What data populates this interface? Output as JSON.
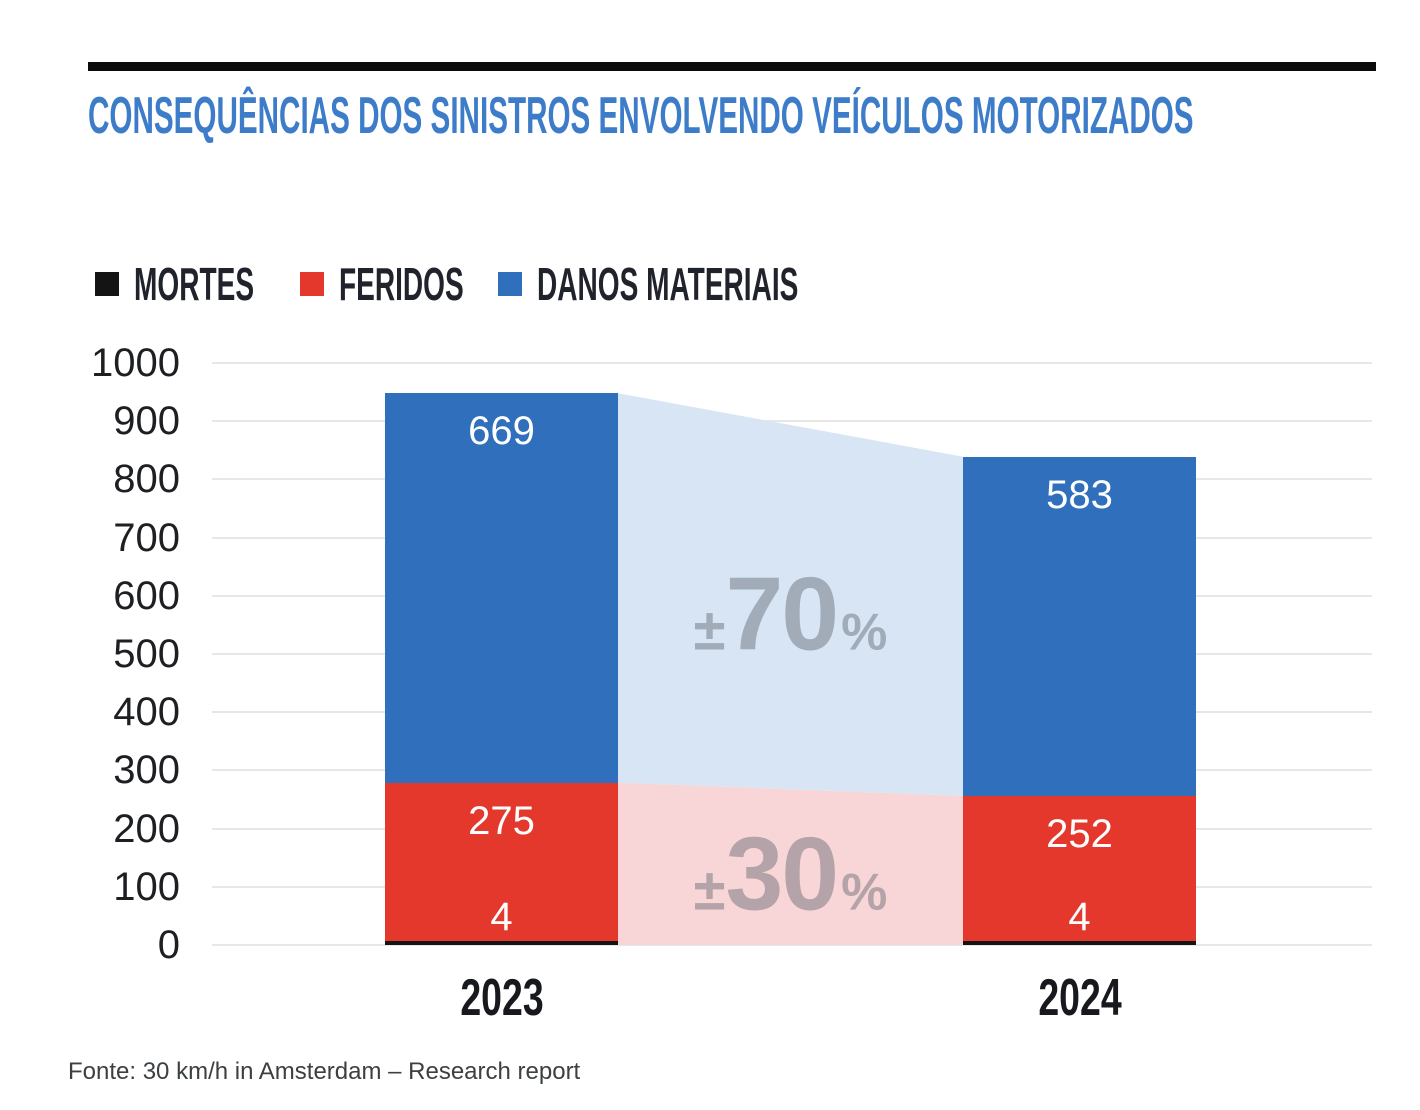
{
  "title": "CONSEQUÊNCIAS DOS SINISTROS ENVOLVENDO VEÍCULOS MOTORIZADOS",
  "legend": {
    "items": [
      {
        "label": "MORTES",
        "color": "#141414"
      },
      {
        "label": "FERIDOS",
        "color": "#E5382D"
      },
      {
        "label": "DANOS MATERIAIS",
        "color": "#2F6FBC"
      }
    ]
  },
  "chart_data": {
    "type": "bar",
    "stacked": true,
    "categories": [
      "2023",
      "2024"
    ],
    "series": [
      {
        "name": "MORTES",
        "color": "#141414",
        "values": [
          4,
          4
        ]
      },
      {
        "name": "FERIDOS",
        "color": "#E5382D",
        "values": [
          275,
          252
        ]
      },
      {
        "name": "DANOS MATERIAIS",
        "color": "#2F6FBC",
        "values": [
          669,
          583
        ]
      }
    ],
    "value_labels": {
      "MORTES": [
        "4",
        "4"
      ],
      "FERIDOS": [
        "275",
        "252"
      ],
      "DANOS MATERIAIS": [
        "669",
        "583"
      ]
    },
    "annotations": [
      {
        "pm": "±",
        "value": "70",
        "pct": "%",
        "refers_to": "DANOS MATERIAIS",
        "band_color": "#D7E5F4"
      },
      {
        "pm": "±",
        "value": "30",
        "pct": "%",
        "refers_to": "FERIDOS",
        "band_color": "#F8D6D8"
      }
    ],
    "xlabel": "",
    "ylabel": "",
    "ylim": [
      0,
      1000
    ],
    "yticks": [
      0,
      100,
      200,
      300,
      400,
      500,
      600,
      700,
      800,
      900,
      1000
    ],
    "grid": true,
    "legend_position": "top"
  },
  "footer": "Fonte: 30 km/h in Amsterdam – Research report",
  "colors": {
    "title": "#3D7CC9",
    "grid": "#E7E7E7",
    "axis_text": "#1D1F23",
    "bar_value_text": "#FFFFFF",
    "annotation_text": "rgba(98,103,110,0.45)",
    "top_rule": "#0B0B0B",
    "footer_text": "#3C4043"
  }
}
